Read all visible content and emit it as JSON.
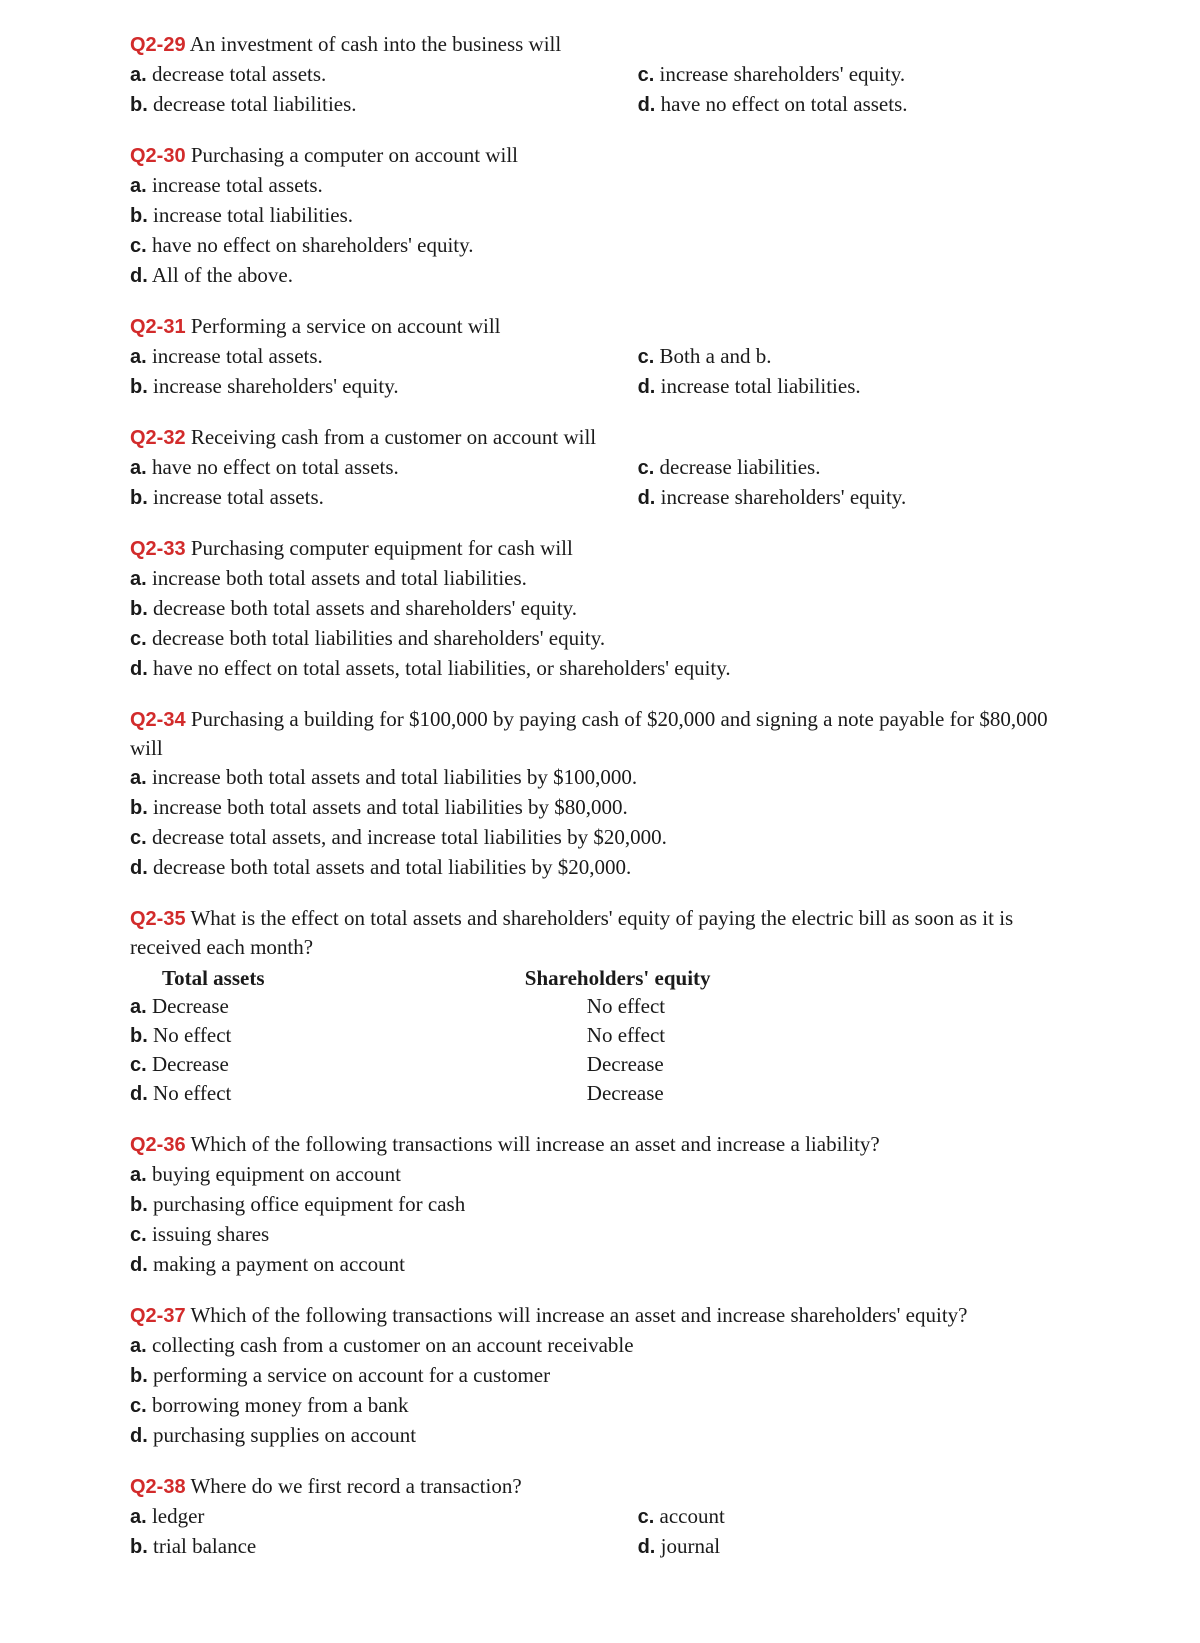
{
  "colors": {
    "q_label": "#d22b2b",
    "text": "#1a1a1a",
    "background": "#ffffff"
  },
  "typography": {
    "body_font": "Georgia, Times New Roman, serif",
    "label_font": "Arial, Helvetica, sans-serif",
    "body_size_pt": 16,
    "label_size_pt": 15
  },
  "questions": [
    {
      "id": "Q2-29",
      "stem": "An investment of cash into the business will",
      "layout": "two-col",
      "options": {
        "a": "decrease total assets.",
        "b": "decrease total liabilities.",
        "c": "increase shareholders' equity.",
        "d": "have no effect on total assets."
      }
    },
    {
      "id": "Q2-30",
      "stem": "Purchasing a computer on account will",
      "layout": "single",
      "options": {
        "a": "increase total assets.",
        "b": "increase total liabilities.",
        "c": "have no effect on shareholders' equity.",
        "d": "All of the above."
      }
    },
    {
      "id": "Q2-31",
      "stem": "Performing a service on account will",
      "layout": "two-col",
      "options": {
        "a": "increase total assets.",
        "b": "increase shareholders' equity.",
        "c": "Both a and b.",
        "d": "increase total liabilities."
      }
    },
    {
      "id": "Q2-32",
      "stem": "Receiving cash from a customer on account will",
      "layout": "two-col",
      "options": {
        "a": "have no effect on total assets.",
        "b": "increase total assets.",
        "c": "decrease liabilities.",
        "d": "increase shareholders' equity."
      }
    },
    {
      "id": "Q2-33",
      "stem": "Purchasing computer equipment for cash will",
      "layout": "single",
      "options": {
        "a": "increase both total assets and total liabilities.",
        "b": "decrease both total assets and shareholders' equity.",
        "c": "decrease both total liabilities and shareholders' equity.",
        "d": "have no effect on total assets, total liabilities, or shareholders' equity."
      }
    },
    {
      "id": "Q2-34",
      "stem": "Purchasing a building for $100,000 by paying cash of $20,000 and signing a note payable for $80,000 will",
      "layout": "single",
      "options": {
        "a": "increase both total assets and total liabilities by $100,000.",
        "b": "increase both total assets and total liabilities by $80,000.",
        "c": "decrease total assets, and increase total liabilities by $20,000.",
        "d": "decrease both total assets and total liabilities by $20,000."
      }
    },
    {
      "id": "Q2-35",
      "stem": "What is the effect on total assets and shareholders' equity of paying the electric bill as soon as it is received each month?",
      "layout": "table",
      "headers": {
        "left": "Total assets",
        "right": "Shareholders' equity"
      },
      "rows": [
        {
          "label": "a.",
          "left": "Decrease",
          "right": "No effect"
        },
        {
          "label": "b.",
          "left": "No effect",
          "right": "No effect"
        },
        {
          "label": "c.",
          "left": "Decrease",
          "right": "Decrease"
        },
        {
          "label": "d.",
          "left": "No effect",
          "right": "Decrease"
        }
      ]
    },
    {
      "id": "Q2-36",
      "stem": "Which of the following transactions will increase an asset and increase a liability?",
      "layout": "single",
      "options": {
        "a": "buying equipment on account",
        "b": "purchasing office equipment for cash",
        "c": "issuing shares",
        "d": "making a payment on account"
      }
    },
    {
      "id": "Q2-37",
      "stem": "Which of the following transactions will increase an asset and increase shareholders' equity?",
      "layout": "single",
      "options": {
        "a": "collecting cash from a customer on an account receivable",
        "b": "performing a service on account for a customer",
        "c": "borrowing money from a bank",
        "d": "purchasing supplies on account"
      }
    },
    {
      "id": "Q2-38",
      "stem": "Where do we first record a transaction?",
      "layout": "two-col",
      "options": {
        "a": "ledger",
        "b": "trial balance",
        "c": "account",
        "d": "journal"
      }
    }
  ]
}
